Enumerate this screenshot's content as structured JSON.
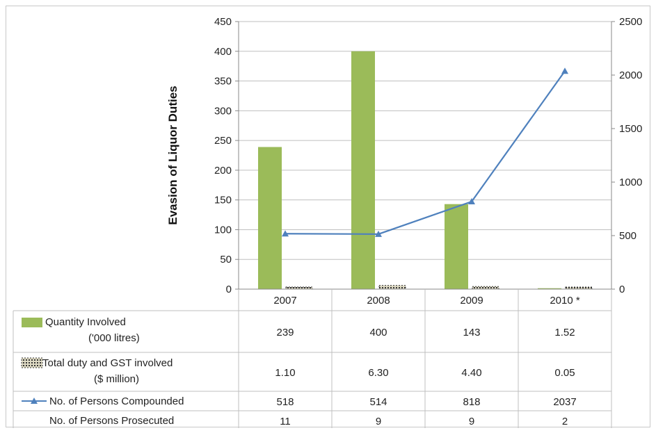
{
  "chart_data": {
    "type": "bar",
    "title": "",
    "ylabel": "Evasion of Liquor Duties",
    "categories": [
      "2007",
      "2008",
      "2009",
      "2010 *"
    ],
    "ylim": [
      0,
      450
    ],
    "y_ticks": [
      "0",
      "50",
      "100",
      "150",
      "200",
      "250",
      "300",
      "350",
      "400",
      "450"
    ],
    "y2lim": [
      0,
      2500
    ],
    "y2_ticks": [
      "0",
      "500",
      "1000",
      "1500",
      "2000",
      "2500"
    ],
    "grid": true,
    "legend": "table-below",
    "series": [
      {
        "name": "Quantity Involved ('000 litres)",
        "name_line1": "Quantity Involved",
        "name_line2": "('000 litres)",
        "kind": "bar",
        "axis": "left",
        "color": "#9bbb59",
        "values": [
          239,
          400,
          143,
          1.52
        ],
        "labels": [
          "239",
          "400",
          "143",
          "1.52"
        ]
      },
      {
        "name": "Total duty and GST involved ($ million)",
        "name_line1": "Total duty and GST involved",
        "name_line2": "($ million)",
        "kind": "bar",
        "axis": "left",
        "color": "#ddd9c3",
        "values": [
          1.1,
          6.3,
          4.4,
          0.05
        ],
        "labels": [
          "1.10",
          "6.30",
          "4.40",
          "0.05"
        ]
      },
      {
        "name": "No. of Persons Compounded",
        "kind": "line",
        "axis": "right",
        "color": "#4f81bd",
        "values": [
          518,
          514,
          818,
          2037
        ],
        "labels": [
          "518",
          "514",
          "818",
          "2037"
        ]
      },
      {
        "name": "No. of Persons Prosecuted",
        "kind": "none",
        "values": [
          11,
          9,
          9,
          2
        ],
        "labels": [
          "11",
          "9",
          "9",
          "2"
        ]
      }
    ]
  }
}
